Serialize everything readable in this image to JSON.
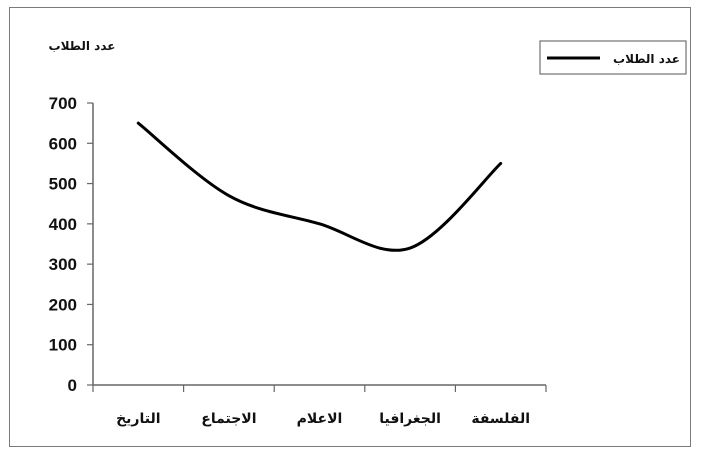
{
  "chart_data": {
    "type": "line",
    "ylabel": "عدد الطلاب",
    "categories": [
      "التاريخ",
      "الاجتماع",
      "الاعلام",
      "الجغرافيا",
      "الفلسفة"
    ],
    "series": [
      {
        "name": "عدد الطلاب",
        "values": [
          650,
          470,
          400,
          340,
          550
        ],
        "color": "#000000"
      }
    ],
    "ylim": [
      0,
      700
    ],
    "yticks": [
      0,
      100,
      200,
      300,
      400,
      500,
      600,
      700
    ],
    "grid": false,
    "smooth": true,
    "legend_position": "top-right"
  }
}
